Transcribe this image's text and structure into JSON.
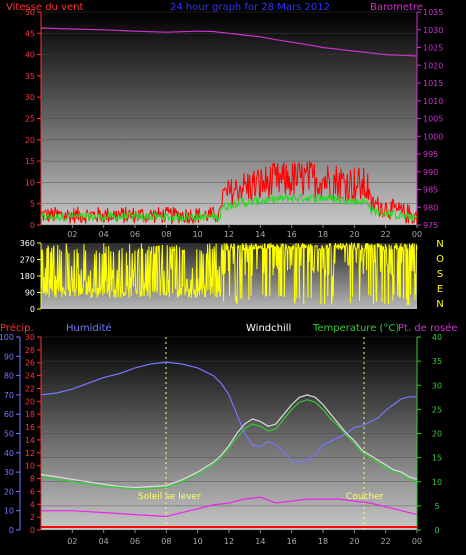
{
  "header": {
    "title": "24 hour graph for  28 Mars 2012",
    "left_label": "Vitesse du vent",
    "right_label": "Barometre"
  },
  "labels": {
    "precip": "Précip.",
    "humidity": "Humidité",
    "windchill": "Windchill",
    "temperature": "Temperature (°C)",
    "dewpoint": "Pt. de rosée",
    "sunrise": "Soleil se lever",
    "sunset": "Coucher"
  },
  "colors": {
    "wind_gust": "#ff0000",
    "wind_avg": "#22dd22",
    "barometer": "#cc33cc",
    "direction": "#ffff00",
    "humidity": "#7777ff",
    "temperature": "#33cc33",
    "dewpoint": "#dddddd",
    "windchill": "#ffffff",
    "precip": "#ff0000",
    "pink_series": "#ee22ee",
    "title": "#3333ff",
    "left_axis": "#ff3333",
    "right_axis": "#cc33cc",
    "temp_axis": "#33cc33",
    "humidity_axis": "#7777ff"
  },
  "chart_data": [
    {
      "id": "wind_baro",
      "type": "line",
      "x_ticks": [
        "02",
        "04",
        "06",
        "08",
        "10",
        "12",
        "14",
        "16",
        "18",
        "20",
        "22",
        "00"
      ],
      "y_left_ticks": [
        "0",
        "5",
        "10",
        "15",
        "20",
        "25",
        "30",
        "35",
        "40",
        "45",
        "50"
      ],
      "y_right_ticks": [
        "975",
        "980",
        "985",
        "990",
        "995",
        "1000",
        "1005",
        "1010",
        "1015",
        "1020",
        "1025",
        "1030",
        "1035"
      ],
      "xlim": [
        0,
        24
      ],
      "ylim_left": [
        0,
        50
      ],
      "ylim_right": [
        975,
        1035
      ],
      "series": [
        {
          "name": "Barometre",
          "axis": "right",
          "x": [
            0,
            2,
            4,
            6,
            8,
            10,
            11,
            12,
            13,
            14,
            15,
            16,
            17,
            18,
            19,
            20,
            21,
            22,
            23,
            24
          ],
          "values": [
            1030.5,
            1030.2,
            1030.0,
            1029.6,
            1029.3,
            1029.6,
            1029.5,
            1029.0,
            1028.5,
            1028.0,
            1027.2,
            1026.5,
            1025.8,
            1025.0,
            1024.5,
            1024.0,
            1023.5,
            1023.0,
            1022.8,
            1022.6
          ]
        }
      ]
    },
    {
      "id": "direction",
      "type": "line",
      "y_ticks": [
        "0",
        "90",
        "180",
        "270",
        "360"
      ],
      "ylim": [
        0,
        360
      ],
      "compass": [
        "N",
        "O",
        "S",
        "E",
        "N"
      ]
    },
    {
      "id": "temp_hum",
      "type": "line",
      "x_ticks": [
        "02",
        "04",
        "06",
        "08",
        "10",
        "12",
        "14",
        "16",
        "18",
        "20",
        "22",
        "00"
      ],
      "humidity_ticks": [
        "0",
        "10",
        "20",
        "30",
        "40",
        "50",
        "60",
        "70",
        "80",
        "90",
        "100"
      ],
      "precip_ticks": [
        "0",
        "2",
        "4",
        "6",
        "8",
        "10",
        "12",
        "14",
        "16",
        "18",
        "20",
        "22",
        "24",
        "26",
        "28",
        "30"
      ],
      "temp_ticks": [
        "0",
        "5",
        "10",
        "15",
        "20",
        "25",
        "30",
        "35",
        "40"
      ],
      "xlim": [
        0,
        24
      ],
      "ylim_humidity": [
        0,
        100
      ],
      "ylim_temp": [
        0,
        40
      ],
      "series": [
        {
          "name": "Humidité",
          "axis": "humidity",
          "x": [
            0,
            1,
            2,
            3,
            4,
            5,
            6,
            7,
            8,
            9,
            10,
            11,
            11.5,
            12,
            12.5,
            13,
            13.5,
            14,
            14.5,
            15,
            15.5,
            16,
            16.5,
            17,
            17.5,
            18,
            18.5,
            19,
            19.5,
            20,
            20.5,
            21,
            21.5,
            22,
            22.5,
            23,
            23.5,
            24
          ],
          "values": [
            70,
            71,
            73,
            76,
            79,
            81,
            84,
            86,
            87,
            86,
            84,
            80,
            76,
            70,
            60,
            50,
            44,
            43,
            46,
            44,
            40,
            36,
            35,
            36,
            39,
            44,
            46,
            48,
            50,
            53,
            54,
            56,
            58,
            62,
            65,
            68,
            69,
            69
          ]
        },
        {
          "name": "Temperature",
          "axis": "temp",
          "x": [
            0,
            1,
            2,
            3,
            4,
            5,
            6,
            7,
            8,
            9,
            10,
            11,
            11.5,
            12,
            12.5,
            13,
            13.5,
            14,
            14.5,
            15,
            15.5,
            16,
            16.5,
            17,
            17.5,
            18,
            18.5,
            19,
            19.5,
            20,
            20.5,
            21,
            21.5,
            22,
            22.5,
            23,
            23.5,
            24
          ],
          "values": [
            11,
            10.5,
            10,
            9.5,
            9,
            8.8,
            8.5,
            8.6,
            8.8,
            10,
            11.5,
            13.5,
            15,
            17,
            19,
            21,
            22,
            21.5,
            20.5,
            21,
            23,
            25,
            26.5,
            27,
            26.5,
            25,
            23,
            21.5,
            19.5,
            18,
            16,
            15,
            14,
            13,
            12,
            11.5,
            10.5,
            10
          ]
        },
        {
          "name": "Pt. de rosée",
          "axis": "temp",
          "x": [
            0,
            1,
            2,
            3,
            4,
            5,
            6,
            7,
            8,
            9,
            10,
            11,
            11.5,
            12,
            12.5,
            13,
            13.5,
            14,
            14.5,
            15,
            15.5,
            16,
            16.5,
            17,
            17.5,
            18,
            18.5,
            19,
            19.5,
            20,
            20.5,
            21,
            21.5,
            22,
            22.5,
            23,
            23.5,
            24
          ],
          "values": [
            11.5,
            11,
            10.5,
            10,
            9.5,
            9,
            8.8,
            9,
            9.2,
            10.4,
            12,
            14,
            15.5,
            17.5,
            20,
            22,
            23,
            22.5,
            21.5,
            22,
            24,
            26,
            27.5,
            28,
            27.5,
            26,
            24,
            22,
            20,
            18.5,
            16.5,
            15.5,
            14.5,
            13.5,
            12.5,
            12,
            11,
            10.5
          ]
        },
        {
          "name": "pink",
          "axis": "humidity",
          "x": [
            0,
            2,
            4,
            6,
            8,
            9,
            10,
            11,
            12,
            13,
            14,
            15,
            16,
            17,
            18,
            19,
            20,
            21,
            22,
            23,
            24
          ],
          "values": [
            10,
            10,
            9,
            8,
            7,
            9,
            11,
            13,
            14,
            16,
            17,
            14,
            15,
            16,
            16,
            16,
            15,
            14,
            12,
            10,
            8
          ]
        }
      ]
    }
  ]
}
